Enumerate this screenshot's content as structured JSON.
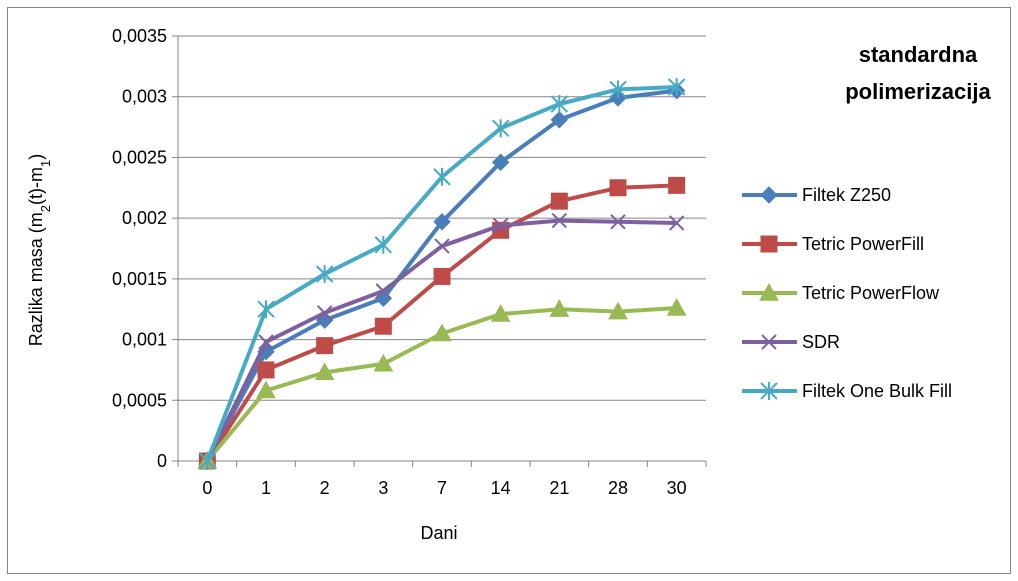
{
  "chart_data": {
    "type": "line",
    "title_line1": "standardna",
    "title_line2": "polimerizacija",
    "xlabel": "Dani",
    "ylabel_prefix": "Razlika masa (m",
    "ylabel_sub1": "2",
    "ylabel_mid": "(t)-m",
    "ylabel_sub2": "1",
    "ylabel_suffix": ")",
    "categories": [
      "0",
      "1",
      "2",
      "3",
      "7",
      "14",
      "21",
      "28",
      "30"
    ],
    "y_ticks": [
      "0",
      "0,0005",
      "0,001",
      "0,0015",
      "0,002",
      "0,0025",
      "0,003",
      "0,0035"
    ],
    "ylim": [
      0,
      0.0035
    ],
    "grid": "horizontal",
    "legend_position": "right",
    "series": [
      {
        "name": "Filtek Z250",
        "color": "#4a7ebb",
        "marker": "diamond",
        "values": [
          0,
          0.0009,
          0.00116,
          0.00134,
          0.00197,
          0.00246,
          0.00281,
          0.00299,
          0.00305
        ]
      },
      {
        "name": "Tetric PowerFill",
        "color": "#be4b48",
        "marker": "square",
        "values": [
          0,
          0.00075,
          0.00095,
          0.00111,
          0.00152,
          0.0019,
          0.00214,
          0.00225,
          0.00227
        ]
      },
      {
        "name": "Tetric PowerFlow",
        "color": "#98b954",
        "marker": "triangle",
        "values": [
          0,
          0.00058,
          0.00073,
          0.0008,
          0.00105,
          0.00121,
          0.00125,
          0.00123,
          0.00126
        ]
      },
      {
        "name": "SDR",
        "color": "#7d60a0",
        "marker": "x",
        "values": [
          0,
          0.00098,
          0.00122,
          0.0014,
          0.00177,
          0.00194,
          0.00198,
          0.00197,
          0.00196
        ]
      },
      {
        "name": "Filtek One Bulk Fill",
        "color": "#46aac5",
        "marker": "asterisk",
        "values": [
          0,
          0.00125,
          0.00154,
          0.00178,
          0.00234,
          0.00274,
          0.00294,
          0.00306,
          0.00308
        ]
      }
    ]
  }
}
